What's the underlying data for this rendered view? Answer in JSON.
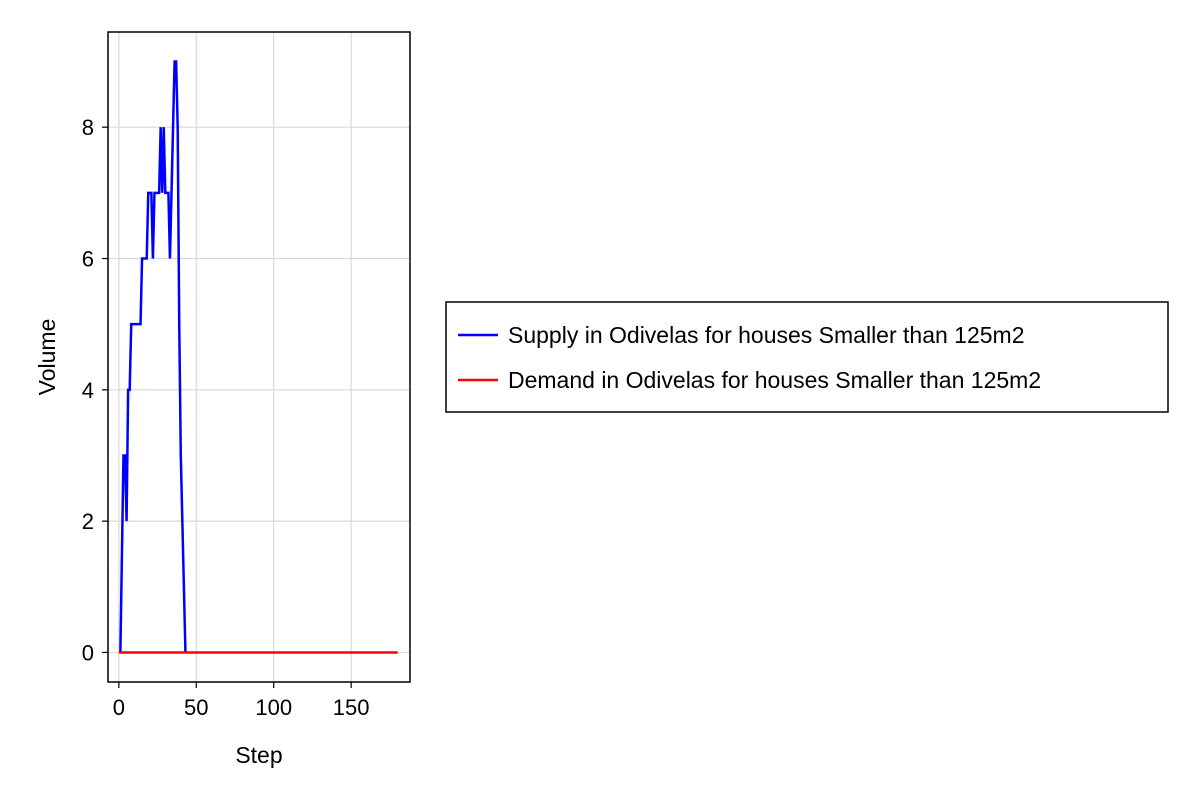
{
  "chart_data": {
    "type": "line",
    "xlabel": "Step",
    "ylabel": "Volume",
    "xlim": [
      -7,
      188
    ],
    "ylim": [
      -0.45,
      9.45
    ],
    "xticks": [
      0,
      50,
      100,
      150
    ],
    "yticks": [
      0,
      2,
      4,
      6,
      8
    ],
    "grid": true,
    "legend_position": "right",
    "series": [
      {
        "name": "Supply in Odivelas for houses Smaller than 125m2",
        "color": "#0000ff",
        "x": [
          1,
          3,
          4,
          5,
          6,
          7,
          8,
          9,
          10,
          11,
          12,
          13,
          14,
          15,
          16,
          17,
          18,
          19,
          20,
          21,
          22,
          23,
          24,
          25,
          26,
          27,
          28,
          29,
          30,
          31,
          32,
          33,
          34,
          35,
          36,
          37,
          38,
          39,
          40,
          41,
          42,
          43
        ],
        "y": [
          0,
          3,
          3,
          2,
          4,
          4,
          5,
          5,
          5,
          5,
          5,
          5,
          5,
          6,
          6,
          6,
          6,
          7,
          7,
          7,
          6,
          7,
          7,
          7,
          7,
          8,
          7,
          8,
          7,
          7,
          7,
          6,
          7,
          8,
          9,
          9,
          8,
          5,
          3,
          2,
          1,
          0
        ]
      },
      {
        "name": "Demand in Odivelas for houses Smaller than 125m2",
        "color": "#ff0000",
        "x": [
          0,
          180
        ],
        "y": [
          0,
          0
        ]
      }
    ]
  }
}
